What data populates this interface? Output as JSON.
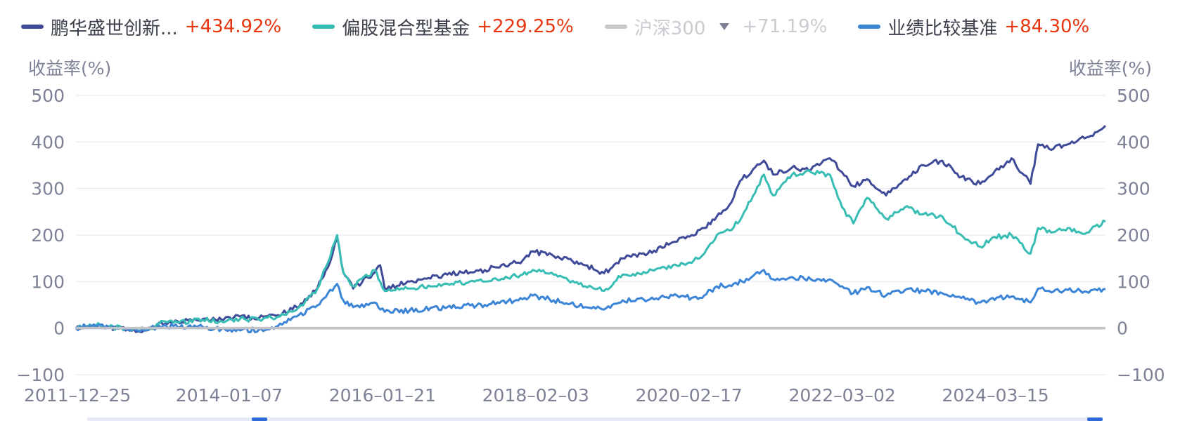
{
  "legend": {
    "items": [
      {
        "name": "鹏华盛世创新...",
        "value": "+434.92%",
        "color": "#3f4a98",
        "active": true
      },
      {
        "name": "偏股混合型基金",
        "value": "+229.25%",
        "color": "#37bdb3",
        "active": true
      },
      {
        "name": "沪深300",
        "value": "+71.19%",
        "color": "#c8c8c8",
        "active": false,
        "caret": true
      },
      {
        "name": "业绩比较基准",
        "value": "+84.30%",
        "color": "#3b84d6",
        "active": true
      }
    ]
  },
  "axis_unit_left": "收益率(%)",
  "axis_unit_right": "收益率(%)",
  "chart_data": {
    "type": "line",
    "ylim": [
      -100,
      500
    ],
    "yticks": [
      500,
      400,
      300,
      200,
      100,
      0,
      -100
    ],
    "xlim": [
      "2011-12-25",
      "2025-08-31"
    ],
    "xticks": [
      "2011-12-25",
      "2014-01-07",
      "2016-01-21",
      "2018-02-03",
      "2020-02-17",
      "2022-03-02",
      "2024-03-15"
    ],
    "grid": true,
    "legend_position": "top",
    "series": [
      {
        "name": "鹏华盛世创新...",
        "color": "#3f4a98",
        "points": [
          [
            "2011-12-25",
            0
          ],
          [
            "2012-03-01",
            5
          ],
          [
            "2012-06-01",
            2
          ],
          [
            "2012-09-01",
            -3
          ],
          [
            "2012-12-01",
            -5
          ],
          [
            "2013-02-01",
            12
          ],
          [
            "2013-05-01",
            15
          ],
          [
            "2013-09-01",
            20
          ],
          [
            "2013-12-01",
            18
          ],
          [
            "2014-03-01",
            25
          ],
          [
            "2014-06-01",
            22
          ],
          [
            "2014-09-01",
            28
          ],
          [
            "2014-12-01",
            45
          ],
          [
            "2015-03-01",
            80
          ],
          [
            "2015-05-01",
            130
          ],
          [
            "2015-06-15",
            195
          ],
          [
            "2015-07-15",
            120
          ],
          [
            "2015-09-01",
            85
          ],
          [
            "2015-12-15",
            120
          ],
          [
            "2016-01-10",
            135
          ],
          [
            "2016-02-01",
            85
          ],
          [
            "2016-06-01",
            100
          ],
          [
            "2016-12-01",
            115
          ],
          [
            "2017-06-01",
            125
          ],
          [
            "2017-12-01",
            145
          ],
          [
            "2018-01-20",
            165
          ],
          [
            "2018-05-01",
            155
          ],
          [
            "2018-10-01",
            135
          ],
          [
            "2019-01-01",
            118
          ],
          [
            "2019-04-01",
            150
          ],
          [
            "2019-08-01",
            160
          ],
          [
            "2019-12-01",
            185
          ],
          [
            "2020-03-01",
            200
          ],
          [
            "2020-05-01",
            215
          ],
          [
            "2020-07-01",
            240
          ],
          [
            "2020-09-01",
            265
          ],
          [
            "2020-11-01",
            320
          ],
          [
            "2021-02-15",
            360
          ],
          [
            "2021-04-01",
            330
          ],
          [
            "2021-07-01",
            345
          ],
          [
            "2021-10-01",
            340
          ],
          [
            "2022-01-01",
            365
          ],
          [
            "2022-03-01",
            335
          ],
          [
            "2022-04-25",
            305
          ],
          [
            "2022-07-01",
            320
          ],
          [
            "2022-10-01",
            285
          ],
          [
            "2023-01-01",
            320
          ],
          [
            "2023-04-01",
            350
          ],
          [
            "2023-07-01",
            360
          ],
          [
            "2023-10-01",
            325
          ],
          [
            "2024-01-01",
            310
          ],
          [
            "2024-03-01",
            330
          ],
          [
            "2024-06-01",
            365
          ],
          [
            "2024-09-01",
            310
          ],
          [
            "2024-10-08",
            395
          ],
          [
            "2024-12-01",
            385
          ],
          [
            "2025-03-01",
            395
          ],
          [
            "2025-06-01",
            410
          ],
          [
            "2025-08-31",
            435
          ]
        ]
      },
      {
        "name": "偏股混合型基金",
        "color": "#37bdb3",
        "points": [
          [
            "2011-12-25",
            0
          ],
          [
            "2012-03-01",
            8
          ],
          [
            "2012-06-01",
            3
          ],
          [
            "2012-09-01",
            -2
          ],
          [
            "2012-12-01",
            -3
          ],
          [
            "2013-02-01",
            10
          ],
          [
            "2013-05-01",
            12
          ],
          [
            "2013-09-01",
            18
          ],
          [
            "2013-12-01",
            15
          ],
          [
            "2014-03-01",
            20
          ],
          [
            "2014-06-01",
            18
          ],
          [
            "2014-09-01",
            25
          ],
          [
            "2014-12-01",
            40
          ],
          [
            "2015-03-01",
            75
          ],
          [
            "2015-05-01",
            140
          ],
          [
            "2015-06-15",
            200
          ],
          [
            "2015-07-15",
            120
          ],
          [
            "2015-09-01",
            90
          ],
          [
            "2015-12-15",
            125
          ],
          [
            "2016-01-10",
            100
          ],
          [
            "2016-02-01",
            80
          ],
          [
            "2016-06-01",
            85
          ],
          [
            "2016-12-01",
            95
          ],
          [
            "2017-06-01",
            100
          ],
          [
            "2017-12-01",
            115
          ],
          [
            "2018-01-20",
            125
          ],
          [
            "2018-05-01",
            115
          ],
          [
            "2018-10-01",
            90
          ],
          [
            "2019-01-01",
            80
          ],
          [
            "2019-04-01",
            115
          ],
          [
            "2019-08-01",
            120
          ],
          [
            "2019-12-01",
            135
          ],
          [
            "2020-03-01",
            140
          ],
          [
            "2020-05-01",
            160
          ],
          [
            "2020-07-01",
            200
          ],
          [
            "2020-09-01",
            210
          ],
          [
            "2020-11-01",
            240
          ],
          [
            "2021-02-15",
            330
          ],
          [
            "2021-04-01",
            285
          ],
          [
            "2021-07-01",
            330
          ],
          [
            "2021-10-01",
            335
          ],
          [
            "2022-01-01",
            330
          ],
          [
            "2022-03-01",
            260
          ],
          [
            "2022-04-25",
            225
          ],
          [
            "2022-07-01",
            280
          ],
          [
            "2022-10-01",
            235
          ],
          [
            "2023-01-01",
            260
          ],
          [
            "2023-04-01",
            245
          ],
          [
            "2023-07-01",
            240
          ],
          [
            "2023-10-01",
            200
          ],
          [
            "2024-01-01",
            175
          ],
          [
            "2024-03-01",
            195
          ],
          [
            "2024-06-01",
            200
          ],
          [
            "2024-09-01",
            160
          ],
          [
            "2024-10-08",
            215
          ],
          [
            "2024-12-01",
            210
          ],
          [
            "2025-03-01",
            215
          ],
          [
            "2025-06-01",
            205
          ],
          [
            "2025-08-31",
            229
          ]
        ]
      },
      {
        "name": "业绩比较基准",
        "color": "#3b84d6",
        "points": [
          [
            "2011-12-25",
            0
          ],
          [
            "2012-03-01",
            5
          ],
          [
            "2012-06-01",
            2
          ],
          [
            "2012-09-01",
            -3
          ],
          [
            "2012-12-01",
            -5
          ],
          [
            "2013-02-01",
            5
          ],
          [
            "2013-05-01",
            3
          ],
          [
            "2013-09-01",
            2
          ],
          [
            "2013-12-01",
            -2
          ],
          [
            "2014-03-01",
            -5
          ],
          [
            "2014-06-01",
            -3
          ],
          [
            "2014-09-01",
            5
          ],
          [
            "2014-12-01",
            25
          ],
          [
            "2015-03-01",
            45
          ],
          [
            "2015-05-01",
            75
          ],
          [
            "2015-06-15",
            95
          ],
          [
            "2015-07-15",
            60
          ],
          [
            "2015-09-01",
            45
          ],
          [
            "2015-12-15",
            55
          ],
          [
            "2016-01-10",
            40
          ],
          [
            "2016-02-01",
            35
          ],
          [
            "2016-06-01",
            38
          ],
          [
            "2016-12-01",
            45
          ],
          [
            "2017-06-01",
            50
          ],
          [
            "2017-12-01",
            62
          ],
          [
            "2018-01-20",
            70
          ],
          [
            "2018-05-01",
            60
          ],
          [
            "2018-10-01",
            45
          ],
          [
            "2019-01-01",
            40
          ],
          [
            "2019-04-01",
            60
          ],
          [
            "2019-08-01",
            60
          ],
          [
            "2019-12-01",
            70
          ],
          [
            "2020-03-01",
            65
          ],
          [
            "2020-05-01",
            70
          ],
          [
            "2020-07-01",
            90
          ],
          [
            "2020-09-01",
            92
          ],
          [
            "2020-11-01",
            100
          ],
          [
            "2021-02-15",
            125
          ],
          [
            "2021-04-01",
            105
          ],
          [
            "2021-07-01",
            110
          ],
          [
            "2021-10-01",
            105
          ],
          [
            "2022-01-01",
            105
          ],
          [
            "2022-03-01",
            90
          ],
          [
            "2022-04-25",
            75
          ],
          [
            "2022-07-01",
            88
          ],
          [
            "2022-10-01",
            70
          ],
          [
            "2023-01-01",
            82
          ],
          [
            "2023-04-01",
            80
          ],
          [
            "2023-07-01",
            75
          ],
          [
            "2023-10-01",
            65
          ],
          [
            "2024-01-01",
            55
          ],
          [
            "2024-03-01",
            65
          ],
          [
            "2024-06-01",
            68
          ],
          [
            "2024-09-01",
            55
          ],
          [
            "2024-10-08",
            85
          ],
          [
            "2024-12-01",
            80
          ],
          [
            "2025-03-01",
            82
          ],
          [
            "2025-06-01",
            78
          ],
          [
            "2025-08-31",
            84
          ]
        ]
      }
    ],
    "baseline": {
      "value": 0,
      "color": "#c2c2c6"
    }
  },
  "scrollbar": {
    "start": 0.17,
    "end": 1.0,
    "accent": "#2f6ad8"
  }
}
